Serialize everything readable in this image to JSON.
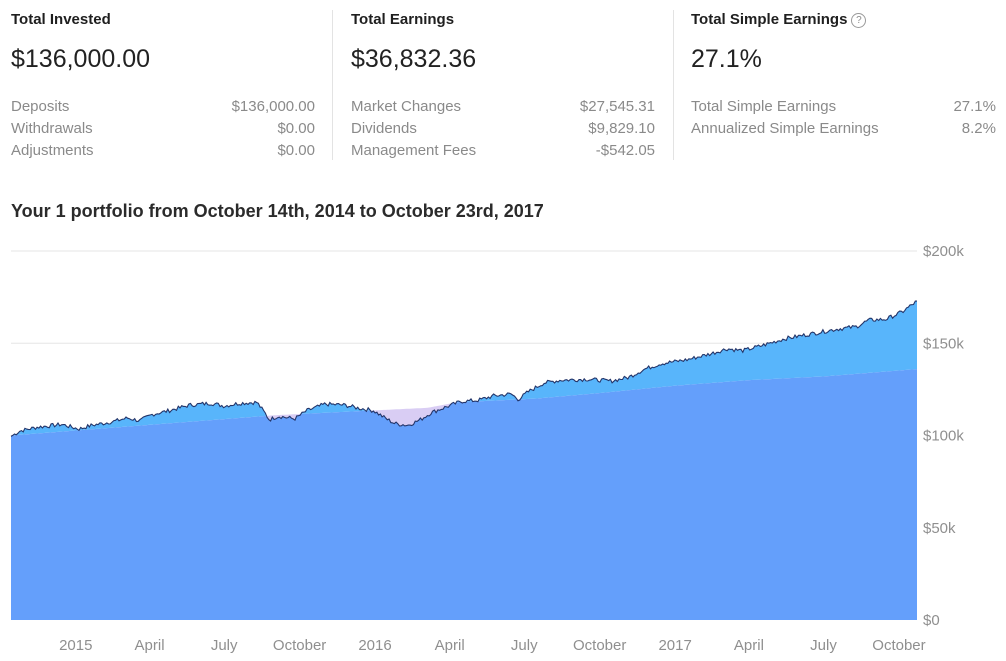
{
  "summary": {
    "total_invested": {
      "title": "Total Invested",
      "value": "$136,000.00",
      "rows": [
        {
          "label": "Deposits",
          "value": "$136,000.00"
        },
        {
          "label": "Withdrawals",
          "value": "$0.00"
        },
        {
          "label": "Adjustments",
          "value": "$0.00"
        }
      ]
    },
    "total_earnings": {
      "title": "Total Earnings",
      "value": "$36,832.36",
      "rows": [
        {
          "label": "Market Changes",
          "value": "$27,545.31"
        },
        {
          "label": "Dividends",
          "value": "$9,829.10"
        },
        {
          "label": "Management Fees",
          "value": "-$542.05"
        }
      ]
    },
    "total_simple_earnings": {
      "title": "Total Simple Earnings",
      "help_icon": "question-circle-icon",
      "value": "27.1%",
      "rows": [
        {
          "label": "Total Simple Earnings",
          "value": "27.1%"
        },
        {
          "label": "Annualized Simple Earnings",
          "value": "8.2%"
        }
      ]
    }
  },
  "chart_title": "Your 1 portfolio from October 14th, 2014 to October 23rd, 2017",
  "chart_data": {
    "type": "area",
    "x_start": "2014-10-14",
    "x_end": "2017-10-23",
    "x_ticks": [
      {
        "date": "2015-01-01",
        "label": "2015"
      },
      {
        "date": "2015-04-01",
        "label": "April"
      },
      {
        "date": "2015-07-01",
        "label": "July"
      },
      {
        "date": "2015-10-01",
        "label": "October"
      },
      {
        "date": "2016-01-01",
        "label": "2016"
      },
      {
        "date": "2016-04-01",
        "label": "April"
      },
      {
        "date": "2016-07-01",
        "label": "July"
      },
      {
        "date": "2016-10-01",
        "label": "October"
      },
      {
        "date": "2017-01-01",
        "label": "2017"
      },
      {
        "date": "2017-04-01",
        "label": "April"
      },
      {
        "date": "2017-07-01",
        "label": "July"
      },
      {
        "date": "2017-10-01",
        "label": "October"
      }
    ],
    "y_ticks": [
      {
        "value": 0,
        "label": "$0"
      },
      {
        "value": 50000,
        "label": "$50k"
      },
      {
        "value": 100000,
        "label": "$100k"
      },
      {
        "value": 150000,
        "label": "$150k"
      },
      {
        "value": 200000,
        "label": "$200k"
      }
    ],
    "ylim": [
      0,
      200000
    ],
    "y_axis_position": "right",
    "grid": true,
    "colors": {
      "invested": "#649ffb",
      "gain": "#58b5fb",
      "loss": "#d9cdf4",
      "line": "#23356a",
      "grid": "#e6e6e6"
    },
    "series": [
      {
        "key": "invested",
        "points": [
          [
            "2014-10-14",
            100000
          ],
          [
            "2015-09-01",
            111000
          ],
          [
            "2016-03-05",
            115000
          ],
          [
            "2016-04-10",
            118000
          ],
          [
            "2016-07-15",
            120000
          ],
          [
            "2016-10-01",
            123000
          ],
          [
            "2017-01-01",
            127000
          ],
          [
            "2017-04-01",
            130000
          ],
          [
            "2017-07-01",
            132000
          ],
          [
            "2017-10-23",
            136000
          ]
        ]
      },
      {
        "key": "total_value",
        "points": [
          [
            "2014-10-14",
            99500
          ],
          [
            "2014-10-25",
            102500
          ],
          [
            "2014-11-15",
            104500
          ],
          [
            "2014-12-15",
            106000
          ],
          [
            "2015-01-05",
            103500
          ],
          [
            "2015-01-20",
            105500
          ],
          [
            "2015-02-15",
            107500
          ],
          [
            "2015-03-05",
            109500
          ],
          [
            "2015-03-20",
            108000
          ],
          [
            "2015-04-05",
            111500
          ],
          [
            "2015-04-25",
            113500
          ],
          [
            "2015-05-20",
            116500
          ],
          [
            "2015-06-15",
            117500
          ],
          [
            "2015-07-01",
            116000
          ],
          [
            "2015-07-20",
            117500
          ],
          [
            "2015-08-10",
            118000
          ],
          [
            "2015-08-20",
            112000
          ],
          [
            "2015-08-25",
            108500
          ],
          [
            "2015-09-05",
            110500
          ],
          [
            "2015-09-25",
            109000
          ],
          [
            "2015-10-10",
            113500
          ],
          [
            "2015-11-01",
            117000
          ],
          [
            "2015-11-25",
            116500
          ],
          [
            "2015-12-10",
            115000
          ],
          [
            "2015-12-30",
            113500
          ],
          [
            "2016-01-15",
            109000
          ],
          [
            "2016-01-25",
            106500
          ],
          [
            "2016-02-10",
            105500
          ],
          [
            "2016-02-25",
            108500
          ],
          [
            "2016-03-10",
            112500
          ],
          [
            "2016-03-25",
            115000
          ],
          [
            "2016-04-15",
            118500
          ],
          [
            "2016-05-05",
            119000
          ],
          [
            "2016-05-25",
            121500
          ],
          [
            "2016-06-15",
            122500
          ],
          [
            "2016-06-24",
            119500
          ],
          [
            "2016-07-05",
            123500
          ],
          [
            "2016-07-25",
            128500
          ],
          [
            "2016-08-15",
            130000
          ],
          [
            "2016-09-15",
            130500
          ],
          [
            "2016-10-15",
            129500
          ],
          [
            "2016-11-05",
            131500
          ],
          [
            "2016-11-25",
            136000
          ],
          [
            "2016-12-15",
            139000
          ],
          [
            "2017-01-15",
            141000
          ],
          [
            "2017-02-15",
            144500
          ],
          [
            "2017-03-05",
            147000
          ],
          [
            "2017-03-25",
            146000
          ],
          [
            "2017-04-15",
            148500
          ],
          [
            "2017-05-15",
            152500
          ],
          [
            "2017-06-15",
            155000
          ],
          [
            "2017-07-15",
            157500
          ],
          [
            "2017-08-10",
            159000
          ],
          [
            "2017-08-25",
            162500
          ],
          [
            "2017-09-15",
            163000
          ],
          [
            "2017-10-05",
            167000
          ],
          [
            "2017-10-23",
            172832
          ]
        ]
      }
    ]
  }
}
